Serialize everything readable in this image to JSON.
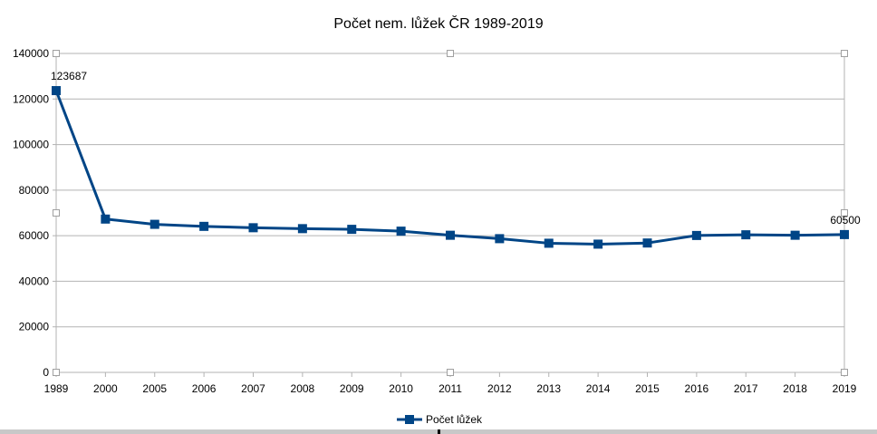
{
  "chart_data": {
    "type": "line",
    "title": "Počet nem. lůžek ČR 1989-2019",
    "categories": [
      "1989",
      "2000",
      "2005",
      "2006",
      "2007",
      "2008",
      "2009",
      "2010",
      "2011",
      "2012",
      "2013",
      "2014",
      "2015",
      "2016",
      "2017",
      "2018",
      "2019"
    ],
    "series": [
      {
        "name": "Počet lůžek",
        "color": "#004586",
        "values": [
          123687,
          67300,
          65000,
          64100,
          63500,
          63100,
          62800,
          62000,
          60200,
          58700,
          56700,
          56300,
          56800,
          60100,
          60400,
          60200,
          60500
        ]
      }
    ],
    "data_labels": [
      {
        "index": 0,
        "text": "123687"
      },
      {
        "index": 16,
        "text": "60500"
      }
    ],
    "y_ticks": [
      "0",
      "20000",
      "40000",
      "60000",
      "80000",
      "100000",
      "120000",
      "140000"
    ],
    "ylim": [
      0,
      140000
    ],
    "xlabel": "",
    "ylabel": "",
    "grid": true,
    "legend_position": "bottom"
  }
}
